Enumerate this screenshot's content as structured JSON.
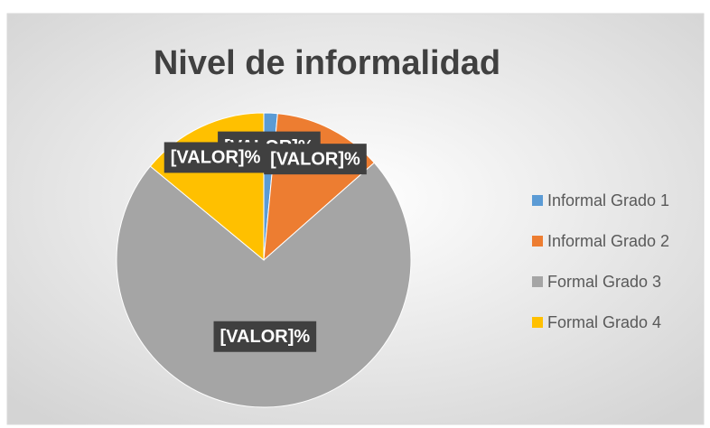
{
  "chart_data": {
    "type": "pie",
    "title": "Nivel de informalidad",
    "categories": [
      "Informal Grado 1",
      "Informal Grado 2",
      "Formal Grado 3",
      "Formal Grado 4"
    ],
    "values": [
      1.5,
      12,
      72.5,
      14
    ],
    "value_labels": [
      "[VALOR]%",
      "[VALOR]%",
      "[VALOR]%",
      "[VALOR]%"
    ],
    "colors": [
      "#5b9bd5",
      "#ed7d31",
      "#a5a5a5",
      "#ffc000"
    ],
    "legend": "right"
  }
}
